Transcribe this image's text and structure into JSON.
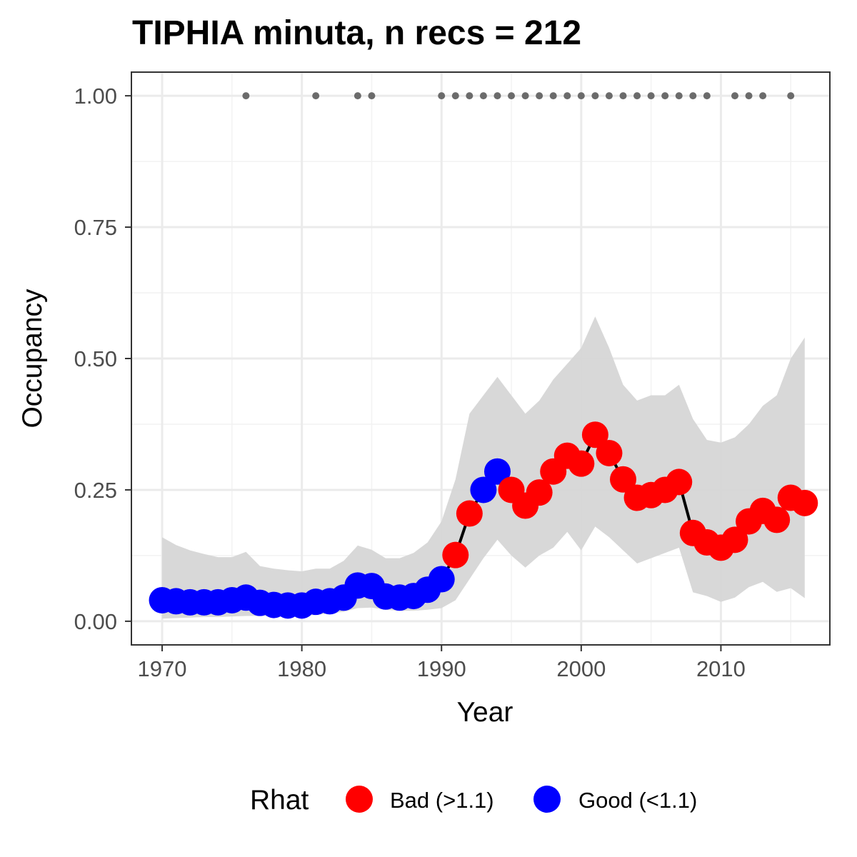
{
  "chart_data": {
    "type": "line",
    "title": "TIPHIA minuta, n recs = 212",
    "xlabel": "Year",
    "ylabel": "Occupancy",
    "xlim": [
      1967.8,
      2017.8
    ],
    "ylim": [
      -0.045,
      1.045
    ],
    "x_ticks": [
      1970,
      1980,
      1990,
      2000,
      2010
    ],
    "x_tick_labels": [
      "1970",
      "1980",
      "1990",
      "2000",
      "2010"
    ],
    "y_ticks": [
      0,
      0.25,
      0.5,
      0.75,
      1.0
    ],
    "y_tick_labels": [
      "0.00",
      "0.25",
      "0.50",
      "0.75",
      "1.00"
    ],
    "grid": true,
    "legend": {
      "title": "Rhat",
      "position": "bottom",
      "items": [
        {
          "label": "Bad (>1.1)",
          "color": "#ff0000"
        },
        {
          "label": "Good (<1.1)",
          "color": "#0000ff"
        }
      ]
    },
    "colors": {
      "bad": "#ff0000",
      "good": "#0000ff",
      "ribbon": "#d6d6d6",
      "line": "#000000",
      "records": "#6b6b6b"
    },
    "years": [
      1970,
      1971,
      1972,
      1973,
      1974,
      1975,
      1976,
      1977,
      1978,
      1979,
      1980,
      1981,
      1982,
      1983,
      1984,
      1985,
      1986,
      1987,
      1988,
      1989,
      1990,
      1991,
      1992,
      1993,
      1994,
      1995,
      1996,
      1997,
      1998,
      1999,
      2000,
      2001,
      2002,
      2003,
      2004,
      2005,
      2006,
      2007,
      2008,
      2009,
      2010,
      2011,
      2012,
      2013,
      2014,
      2015,
      2016
    ],
    "occupancy": [
      0.04,
      0.038,
      0.036,
      0.036,
      0.036,
      0.04,
      0.045,
      0.035,
      0.031,
      0.03,
      0.03,
      0.037,
      0.038,
      0.045,
      0.068,
      0.067,
      0.047,
      0.045,
      0.048,
      0.06,
      0.08,
      0.126,
      0.205,
      0.25,
      0.285,
      0.25,
      0.22,
      0.245,
      0.285,
      0.315,
      0.3,
      0.355,
      0.32,
      0.27,
      0.235,
      0.24,
      0.25,
      0.265,
      0.168,
      0.15,
      0.14,
      0.155,
      0.19,
      0.21,
      0.193,
      0.235,
      0.225
    ],
    "lower": [
      0.005,
      0.006,
      0.007,
      0.008,
      0.008,
      0.009,
      0.01,
      0.01,
      0.01,
      0.01,
      0.01,
      0.012,
      0.015,
      0.018,
      0.025,
      0.026,
      0.022,
      0.02,
      0.02,
      0.022,
      0.025,
      0.04,
      0.08,
      0.12,
      0.155,
      0.125,
      0.102,
      0.125,
      0.14,
      0.17,
      0.135,
      0.18,
      0.16,
      0.135,
      0.11,
      0.12,
      0.13,
      0.14,
      0.055,
      0.048,
      0.037,
      0.045,
      0.065,
      0.075,
      0.056,
      0.063,
      0.044
    ],
    "upper": [
      0.16,
      0.145,
      0.135,
      0.128,
      0.122,
      0.122,
      0.132,
      0.105,
      0.1,
      0.097,
      0.095,
      0.1,
      0.1,
      0.115,
      0.144,
      0.136,
      0.12,
      0.12,
      0.13,
      0.15,
      0.19,
      0.27,
      0.395,
      0.43,
      0.465,
      0.43,
      0.395,
      0.42,
      0.46,
      0.49,
      0.52,
      0.58,
      0.52,
      0.45,
      0.42,
      0.43,
      0.43,
      0.45,
      0.385,
      0.345,
      0.34,
      0.35,
      0.375,
      0.41,
      0.43,
      0.5,
      0.54
    ],
    "rhat": [
      "good",
      "good",
      "good",
      "good",
      "good",
      "good",
      "good",
      "good",
      "good",
      "good",
      "good",
      "good",
      "good",
      "good",
      "good",
      "good",
      "good",
      "good",
      "good",
      "good",
      "good",
      "bad",
      "bad",
      "good",
      "good",
      "bad",
      "bad",
      "bad",
      "bad",
      "bad",
      "bad",
      "bad",
      "bad",
      "bad",
      "bad",
      "bad",
      "bad",
      "bad",
      "bad",
      "bad",
      "bad",
      "bad",
      "bad",
      "bad",
      "bad",
      "bad",
      "bad"
    ],
    "record_years": [
      1976,
      1981,
      1984,
      1985,
      1990,
      1991,
      1992,
      1993,
      1994,
      1995,
      1996,
      1997,
      1998,
      1999,
      2000,
      2001,
      2002,
      2003,
      2004,
      2005,
      2006,
      2007,
      2008,
      2009,
      2011,
      2012,
      2013,
      2015
    ],
    "record_value": 1.0
  }
}
